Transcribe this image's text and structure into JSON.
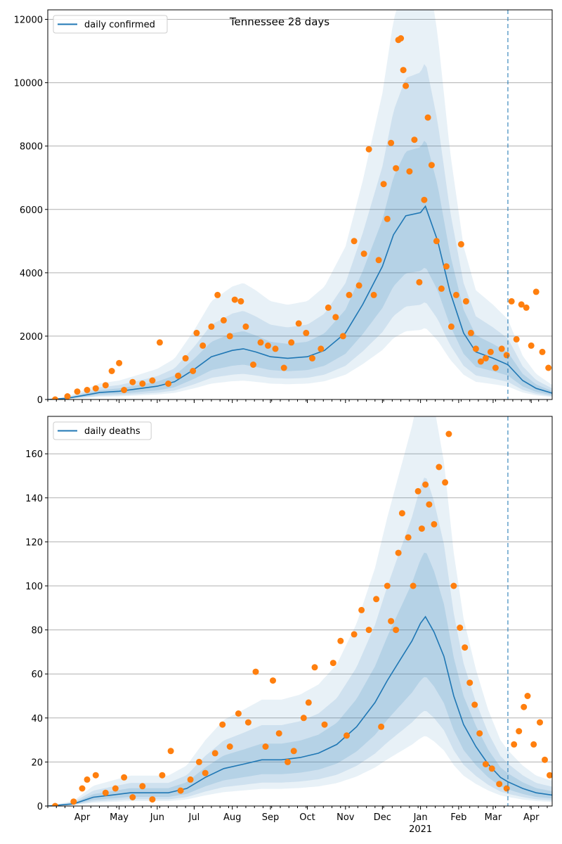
{
  "figure": {
    "title": "Tennessee 28 days"
  },
  "colors": {
    "line": "#1f77b4",
    "points": "#ff7f0e",
    "band": "#1f77b4",
    "grid": "#b0b0b0"
  },
  "chart_data": [
    {
      "type": "line",
      "title": "Tennessee 28 days",
      "xlabel": "",
      "ylabel": "",
      "x_range": [
        "2020-03-04",
        "2021-04-18"
      ],
      "ylim": [
        0,
        12300
      ],
      "y_ticks": [
        0,
        2000,
        4000,
        6000,
        8000,
        10000,
        12000
      ],
      "x_tick_labels": [
        "Apr",
        "May",
        "Jun",
        "Jul",
        "Aug",
        "Sep",
        "Oct",
        "Nov",
        "Dec",
        "Jan",
        "Feb",
        "Mar",
        "Apr"
      ],
      "x_tick_dates": [
        "2020-04-01",
        "2020-05-01",
        "2020-06-01",
        "2020-07-01",
        "2020-08-01",
        "2020-09-01",
        "2020-10-01",
        "2020-11-01",
        "2020-12-01",
        "2021-01-01",
        "2021-02-01",
        "2021-03-01",
        "2021-04-01"
      ],
      "year_label": "2021",
      "grid": "horizontal",
      "legend": {
        "position": "top-left",
        "entries": [
          "daily confirmed"
        ]
      },
      "forecast_start": "2021-03-13",
      "series": [
        {
          "name": "daily confirmed",
          "kind": "line",
          "points": [
            [
              "2020-03-04",
              0
            ],
            [
              "2020-03-20",
              40
            ],
            [
              "2020-04-01",
              120
            ],
            [
              "2020-04-15",
              220
            ],
            [
              "2020-05-01",
              260
            ],
            [
              "2020-05-15",
              330
            ],
            [
              "2020-06-01",
              420
            ],
            [
              "2020-06-15",
              560
            ],
            [
              "2020-07-01",
              950
            ],
            [
              "2020-07-15",
              1350
            ],
            [
              "2020-08-01",
              1550
            ],
            [
              "2020-08-10",
              1600
            ],
            [
              "2020-08-20",
              1500
            ],
            [
              "2020-09-01",
              1350
            ],
            [
              "2020-09-15",
              1300
            ],
            [
              "2020-10-01",
              1350
            ],
            [
              "2020-10-15",
              1550
            ],
            [
              "2020-11-01",
              2100
            ],
            [
              "2020-11-15",
              3000
            ],
            [
              "2020-12-01",
              4200
            ],
            [
              "2020-12-10",
              5200
            ],
            [
              "2020-12-20",
              5800
            ],
            [
              "2021-01-01",
              5900
            ],
            [
              "2021-01-05",
              6100
            ],
            [
              "2021-01-15",
              5000
            ],
            [
              "2021-01-25",
              3400
            ],
            [
              "2021-02-05",
              2100
            ],
            [
              "2021-02-15",
              1500
            ],
            [
              "2021-03-01",
              1300
            ],
            [
              "2021-03-13",
              1100
            ],
            [
              "2021-03-25",
              600
            ],
            [
              "2021-04-05",
              350
            ],
            [
              "2021-04-18",
              200
            ]
          ]
        },
        {
          "name": "observed",
          "kind": "scatter",
          "points": [
            [
              "2020-03-10",
              0
            ],
            [
              "2020-03-20",
              100
            ],
            [
              "2020-03-28",
              250
            ],
            [
              "2020-04-05",
              300
            ],
            [
              "2020-04-12",
              350
            ],
            [
              "2020-04-20",
              450
            ],
            [
              "2020-04-25",
              900
            ],
            [
              "2020-05-01",
              1150
            ],
            [
              "2020-05-05",
              300
            ],
            [
              "2020-05-12",
              550
            ],
            [
              "2020-05-20",
              500
            ],
            [
              "2020-05-28",
              600
            ],
            [
              "2020-06-03",
              1800
            ],
            [
              "2020-06-10",
              500
            ],
            [
              "2020-06-18",
              750
            ],
            [
              "2020-06-24",
              1300
            ],
            [
              "2020-06-30",
              900
            ],
            [
              "2020-07-03",
              2100
            ],
            [
              "2020-07-08",
              1700
            ],
            [
              "2020-07-15",
              2300
            ],
            [
              "2020-07-20",
              3300
            ],
            [
              "2020-07-25",
              2500
            ],
            [
              "2020-07-30",
              2000
            ],
            [
              "2020-08-03",
              3150
            ],
            [
              "2020-08-08",
              3100
            ],
            [
              "2020-08-12",
              2300
            ],
            [
              "2020-08-18",
              1100
            ],
            [
              "2020-08-24",
              1800
            ],
            [
              "2020-08-30",
              1700
            ],
            [
              "2020-09-05",
              1600
            ],
            [
              "2020-09-12",
              1000
            ],
            [
              "2020-09-18",
              1800
            ],
            [
              "2020-09-24",
              2400
            ],
            [
              "2020-09-30",
              2100
            ],
            [
              "2020-10-05",
              1300
            ],
            [
              "2020-10-12",
              1600
            ],
            [
              "2020-10-18",
              2900
            ],
            [
              "2020-10-24",
              2600
            ],
            [
              "2020-10-30",
              2000
            ],
            [
              "2020-11-04",
              3300
            ],
            [
              "2020-11-08",
              5000
            ],
            [
              "2020-11-12",
              3600
            ],
            [
              "2020-11-16",
              4600
            ],
            [
              "2020-11-20",
              7900
            ],
            [
              "2020-11-24",
              3300
            ],
            [
              "2020-11-28",
              4400
            ],
            [
              "2020-12-02",
              6800
            ],
            [
              "2020-12-05",
              5700
            ],
            [
              "2020-12-08",
              8100
            ],
            [
              "2020-12-12",
              7300
            ],
            [
              "2020-12-14",
              11350
            ],
            [
              "2020-12-16",
              11400
            ],
            [
              "2020-12-18",
              10400
            ],
            [
              "2020-12-20",
              9900
            ],
            [
              "2020-12-23",
              7200
            ],
            [
              "2020-12-27",
              8200
            ],
            [
              "2020-12-31",
              3700
            ],
            [
              "2021-01-04",
              6300
            ],
            [
              "2021-01-07",
              8900
            ],
            [
              "2021-01-10",
              7400
            ],
            [
              "2021-01-14",
              5000
            ],
            [
              "2021-01-18",
              3500
            ],
            [
              "2021-01-22",
              4200
            ],
            [
              "2021-01-26",
              2300
            ],
            [
              "2021-01-30",
              3300
            ],
            [
              "2021-02-03",
              4900
            ],
            [
              "2021-02-07",
              3100
            ],
            [
              "2021-02-11",
              2100
            ],
            [
              "2021-02-15",
              1600
            ],
            [
              "2021-02-19",
              1200
            ],
            [
              "2021-02-23",
              1300
            ],
            [
              "2021-02-27",
              1500
            ],
            [
              "2021-03-03",
              1000
            ],
            [
              "2021-03-08",
              1600
            ],
            [
              "2021-03-12",
              1400
            ],
            [
              "2021-03-16",
              3100
            ],
            [
              "2021-03-20",
              1900
            ],
            [
              "2021-03-24",
              3000
            ],
            [
              "2021-03-28",
              2900
            ],
            [
              "2021-04-01",
              1700
            ],
            [
              "2021-04-05",
              3400
            ],
            [
              "2021-04-10",
              1500
            ],
            [
              "2021-04-15",
              1000
            ]
          ]
        }
      ]
    },
    {
      "type": "line",
      "title": "",
      "xlabel": "",
      "ylabel": "",
      "x_range": [
        "2020-03-04",
        "2021-04-18"
      ],
      "ylim": [
        0,
        177
      ],
      "y_ticks": [
        0,
        20,
        40,
        60,
        80,
        100,
        120,
        140,
        160
      ],
      "x_tick_labels": [
        "Apr",
        "May",
        "Jun",
        "Jul",
        "Aug",
        "Sep",
        "Oct",
        "Nov",
        "Dec",
        "Jan",
        "Feb",
        "Mar",
        "Apr"
      ],
      "x_tick_dates": [
        "2020-04-01",
        "2020-05-01",
        "2020-06-01",
        "2020-07-01",
        "2020-08-01",
        "2020-09-01",
        "2020-10-01",
        "2020-11-01",
        "2020-12-01",
        "2021-01-01",
        "2021-02-01",
        "2021-03-01",
        "2021-04-01"
      ],
      "year_label": "2021",
      "grid": "horizontal",
      "legend": {
        "position": "top-left",
        "entries": [
          "daily deaths"
        ]
      },
      "forecast_start": "2021-03-13",
      "series": [
        {
          "name": "daily deaths",
          "kind": "line",
          "points": [
            [
              "2020-03-04",
              0
            ],
            [
              "2020-03-25",
              1
            ],
            [
              "2020-04-10",
              4
            ],
            [
              "2020-04-25",
              5
            ],
            [
              "2020-05-10",
              6
            ],
            [
              "2020-05-25",
              6
            ],
            [
              "2020-06-10",
              6
            ],
            [
              "2020-06-25",
              8
            ],
            [
              "2020-07-10",
              13
            ],
            [
              "2020-07-25",
              17
            ],
            [
              "2020-08-10",
              19
            ],
            [
              "2020-08-25",
              21
            ],
            [
              "2020-09-10",
              21
            ],
            [
              "2020-09-25",
              22
            ],
            [
              "2020-10-10",
              24
            ],
            [
              "2020-10-25",
              28
            ],
            [
              "2020-11-10",
              36
            ],
            [
              "2020-11-25",
              47
            ],
            [
              "2020-12-05",
              57
            ],
            [
              "2020-12-15",
              66
            ],
            [
              "2020-12-25",
              75
            ],
            [
              "2021-01-01",
              83
            ],
            [
              "2021-01-05",
              86
            ],
            [
              "2021-01-12",
              79
            ],
            [
              "2021-01-20",
              68
            ],
            [
              "2021-01-28",
              50
            ],
            [
              "2021-02-05",
              37
            ],
            [
              "2021-02-15",
              27
            ],
            [
              "2021-02-25",
              19
            ],
            [
              "2021-03-07",
              13
            ],
            [
              "2021-03-13",
              11
            ],
            [
              "2021-03-25",
              8
            ],
            [
              "2021-04-05",
              6
            ],
            [
              "2021-04-18",
              5
            ]
          ]
        },
        {
          "name": "observed",
          "kind": "scatter",
          "points": [
            [
              "2020-03-10",
              0
            ],
            [
              "2020-03-25",
              2
            ],
            [
              "2020-04-01",
              8
            ],
            [
              "2020-04-05",
              12
            ],
            [
              "2020-04-12",
              14
            ],
            [
              "2020-04-20",
              6
            ],
            [
              "2020-04-28",
              8
            ],
            [
              "2020-05-05",
              13
            ],
            [
              "2020-05-12",
              4
            ],
            [
              "2020-05-20",
              9
            ],
            [
              "2020-05-28",
              3
            ],
            [
              "2020-06-05",
              14
            ],
            [
              "2020-06-12",
              25
            ],
            [
              "2020-06-20",
              7
            ],
            [
              "2020-06-28",
              12
            ],
            [
              "2020-07-05",
              20
            ],
            [
              "2020-07-10",
              15
            ],
            [
              "2020-07-18",
              24
            ],
            [
              "2020-07-24",
              37
            ],
            [
              "2020-07-30",
              27
            ],
            [
              "2020-08-06",
              42
            ],
            [
              "2020-08-14",
              38
            ],
            [
              "2020-08-20",
              61
            ],
            [
              "2020-08-28",
              27
            ],
            [
              "2020-09-03",
              57
            ],
            [
              "2020-09-08",
              33
            ],
            [
              "2020-09-15",
              20
            ],
            [
              "2020-09-20",
              25
            ],
            [
              "2020-09-28",
              40
            ],
            [
              "2020-10-02",
              47
            ],
            [
              "2020-10-07",
              63
            ],
            [
              "2020-10-15",
              37
            ],
            [
              "2020-10-22",
              65
            ],
            [
              "2020-10-28",
              75
            ],
            [
              "2020-11-02",
              32
            ],
            [
              "2020-11-08",
              78
            ],
            [
              "2020-11-14",
              89
            ],
            [
              "2020-11-20",
              80
            ],
            [
              "2020-11-26",
              94
            ],
            [
              "2020-11-30",
              36
            ],
            [
              "2020-12-05",
              100
            ],
            [
              "2020-12-08",
              84
            ],
            [
              "2020-12-12",
              80
            ],
            [
              "2020-12-14",
              115
            ],
            [
              "2020-12-17",
              133
            ],
            [
              "2020-12-22",
              122
            ],
            [
              "2020-12-26",
              100
            ],
            [
              "2020-12-30",
              143
            ],
            [
              "2021-01-02",
              126
            ],
            [
              "2021-01-05",
              146
            ],
            [
              "2021-01-08",
              137
            ],
            [
              "2021-01-12",
              128
            ],
            [
              "2021-01-16",
              154
            ],
            [
              "2021-01-21",
              147
            ],
            [
              "2021-01-24",
              169
            ],
            [
              "2021-01-28",
              100
            ],
            [
              "2021-02-02",
              81
            ],
            [
              "2021-02-06",
              72
            ],
            [
              "2021-02-10",
              56
            ],
            [
              "2021-02-14",
              46
            ],
            [
              "2021-02-18",
              33
            ],
            [
              "2021-02-23",
              19
            ],
            [
              "2021-02-28",
              17
            ],
            [
              "2021-03-06",
              10
            ],
            [
              "2021-03-12",
              8
            ],
            [
              "2021-03-18",
              28
            ],
            [
              "2021-03-22",
              34
            ],
            [
              "2021-03-26",
              45
            ],
            [
              "2021-03-29",
              50
            ],
            [
              "2021-04-03",
              28
            ],
            [
              "2021-04-08",
              38
            ],
            [
              "2021-04-12",
              21
            ],
            [
              "2021-04-16",
              14
            ]
          ]
        }
      ]
    }
  ]
}
